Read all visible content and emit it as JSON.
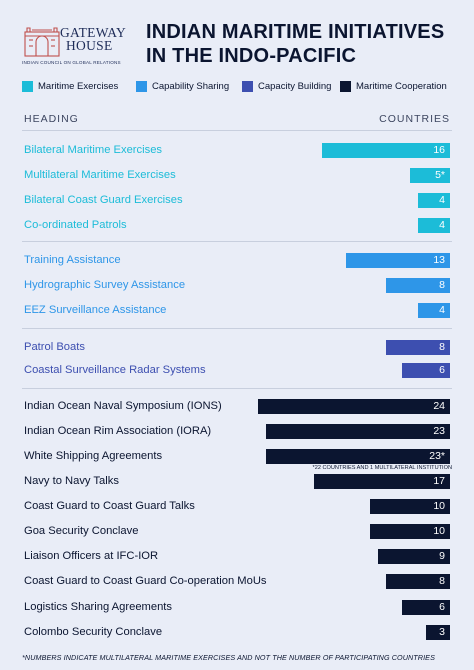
{
  "header": {
    "logo_line1": "GATEWAY",
    "logo_line2": "HOUSE",
    "logo_sub": "INDIAN COUNCIL ON GLOBAL RELATIONS",
    "title_line1": "INDIAN MARITIME INITIATIVES",
    "title_line2": "IN THE INDO-PACIFIC"
  },
  "legend": [
    {
      "label": "Maritime Exercises",
      "color": "#1cbcd8"
    },
    {
      "label": "Capability Sharing",
      "color": "#2e96e8"
    },
    {
      "label": "Capacity Building",
      "color": "#3d4fb0"
    },
    {
      "label": "Maritime Cooperation",
      "color": "#0b1530"
    }
  ],
  "columns": {
    "heading": "HEADING",
    "countries": "COUNTRIES"
  },
  "footnote": "*NUMBERS INDICATE MULTILATERAL MARITIME EXERCISES AND NOT THE NUMBER OF PARTICIPATING COUNTRIES",
  "chart_data": {
    "type": "bar",
    "orientation": "horizontal",
    "title": "INDIAN MARITIME INITIATIVES IN THE INDO-PACIFIC",
    "value_axis_label": "COUNTRIES",
    "category_axis_label": "HEADING",
    "xlim": [
      0,
      24
    ],
    "legend_placement": "top",
    "groups": [
      {
        "name": "Maritime Exercises",
        "color": "#1cbcd8",
        "items": [
          {
            "label": "Bilateral Maritime Exercises",
            "value": 16,
            "display": "16"
          },
          {
            "label": "Multilateral Maritime Exercises",
            "value": 5,
            "display": "5*"
          },
          {
            "label": "Bilateral Coast Guard Exercises",
            "value": 4,
            "display": "4"
          },
          {
            "label": "Co-ordinated Patrols",
            "value": 4,
            "display": "4"
          }
        ]
      },
      {
        "name": "Capability Sharing",
        "color": "#2e96e8",
        "items": [
          {
            "label": "Training Assistance",
            "value": 13,
            "display": "13"
          },
          {
            "label": "Hydrographic Survey Assistance",
            "value": 8,
            "display": "8"
          },
          {
            "label": "EEZ Surveillance Assistance",
            "value": 4,
            "display": "4"
          }
        ]
      },
      {
        "name": "Capacity Building",
        "color": "#3d4fb0",
        "items": [
          {
            "label": "Patrol Boats",
            "value": 8,
            "display": "8"
          },
          {
            "label": "Coastal Surveillance Radar Systems",
            "value": 6,
            "display": "6"
          }
        ]
      },
      {
        "name": "Maritime Cooperation",
        "color": "#0b1530",
        "items": [
          {
            "label": "Indian Ocean Naval Symposium (IONS)",
            "value": 24,
            "display": "24"
          },
          {
            "label": "Indian Ocean Rim Association (IORA)",
            "value": 23,
            "display": "23"
          },
          {
            "label": "White Shipping Agreements",
            "value": 23,
            "display": "23*",
            "note": "*22 COUNTRIES AND 1 MULTILATERAL INSTITUTION"
          },
          {
            "label": "Navy to Navy Talks",
            "value": 17,
            "display": "17"
          },
          {
            "label": "Coast Guard to Coast Guard Talks",
            "value": 10,
            "display": "10"
          },
          {
            "label": "Goa Security Conclave",
            "value": 10,
            "display": "10"
          },
          {
            "label": "Liaison Officers at IFC-IOR",
            "value": 9,
            "display": "9"
          },
          {
            "label": "Coast Guard to Coast Guard Co-operation MoUs",
            "value": 8,
            "display": "8"
          },
          {
            "label": "Logistics Sharing Agreements",
            "value": 6,
            "display": "6"
          },
          {
            "label": "Colombo Security Conclave",
            "value": 3,
            "display": "3"
          }
        ]
      }
    ]
  }
}
